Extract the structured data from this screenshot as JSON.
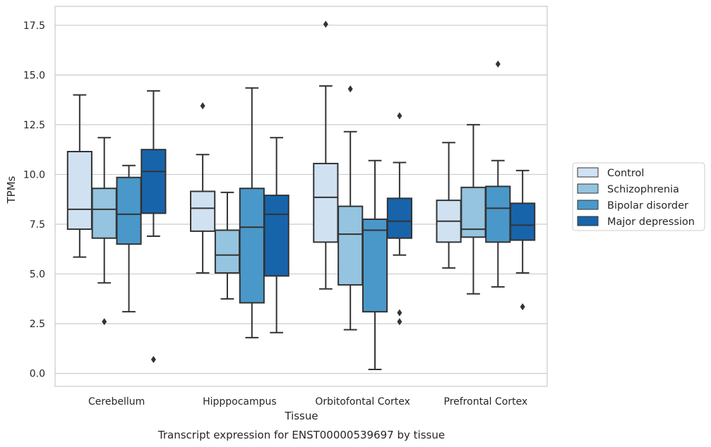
{
  "chart_data": {
    "type": "box",
    "title": "",
    "caption": "Transcript expression for ENST00000539697 by tissue",
    "xlabel": "Tissue",
    "ylabel": "TPMs",
    "ylim": [
      -0.65,
      18.45
    ],
    "yticks": [
      "0.0",
      "2.5",
      "5.0",
      "7.5",
      "10.0",
      "12.5",
      "15.0",
      "17.5"
    ],
    "grid": "horizontal",
    "legend_position": "right",
    "categories": [
      "Cerebellum",
      "Hipppocampus",
      "Orbitofontal Cortex",
      "Prefrontal Cortex"
    ],
    "series": [
      {
        "name": "Control",
        "color": "#d0e1f2",
        "boxes": [
          {
            "whisker_low": 5.85,
            "q1": 7.25,
            "median": 8.25,
            "q3": 11.15,
            "whisker_high": 14.0,
            "outliers": []
          },
          {
            "whisker_low": 5.05,
            "q1": 7.15,
            "median": 8.3,
            "q3": 9.15,
            "whisker_high": 11.0,
            "outliers": [
              13.45
            ]
          },
          {
            "whisker_low": 4.25,
            "q1": 6.6,
            "median": 8.85,
            "q3": 10.55,
            "whisker_high": 14.45,
            "outliers": [
              17.55
            ]
          },
          {
            "whisker_low": 5.3,
            "q1": 6.6,
            "median": 7.65,
            "q3": 8.7,
            "whisker_high": 11.6,
            "outliers": []
          }
        ]
      },
      {
        "name": "Schizophrenia",
        "color": "#94c4df",
        "boxes": [
          {
            "whisker_low": 4.55,
            "q1": 6.8,
            "median": 8.25,
            "q3": 9.3,
            "whisker_high": 11.85,
            "outliers": [
              2.6
            ]
          },
          {
            "whisker_low": 3.75,
            "q1": 5.05,
            "median": 5.95,
            "q3": 7.2,
            "whisker_high": 9.1,
            "outliers": []
          },
          {
            "whisker_low": 2.2,
            "q1": 4.45,
            "median": 7.0,
            "q3": 8.4,
            "whisker_high": 12.15,
            "outliers": [
              14.3
            ]
          },
          {
            "whisker_low": 4.0,
            "q1": 6.85,
            "median": 7.25,
            "q3": 9.35,
            "whisker_high": 12.5,
            "outliers": []
          }
        ]
      },
      {
        "name": "Bipolar disorder",
        "color": "#4a98c9",
        "boxes": [
          {
            "whisker_low": 3.1,
            "q1": 6.5,
            "median": 8.0,
            "q3": 9.85,
            "whisker_high": 10.45,
            "outliers": []
          },
          {
            "whisker_low": 1.8,
            "q1": 3.55,
            "median": 7.35,
            "q3": 9.3,
            "whisker_high": 14.35,
            "outliers": []
          },
          {
            "whisker_low": 0.2,
            "q1": 3.1,
            "median": 7.2,
            "q3": 7.75,
            "whisker_high": 10.7,
            "outliers": []
          },
          {
            "whisker_low": 4.35,
            "q1": 6.6,
            "median": 8.3,
            "q3": 9.4,
            "whisker_high": 10.7,
            "outliers": [
              15.55
            ]
          }
        ]
      },
      {
        "name": "Major depression",
        "color": "#1764ab",
        "boxes": [
          {
            "whisker_low": 6.9,
            "q1": 8.05,
            "median": 10.15,
            "q3": 11.25,
            "whisker_high": 14.2,
            "outliers": [
              0.7
            ]
          },
          {
            "whisker_low": 2.05,
            "q1": 4.9,
            "median": 8.0,
            "q3": 8.95,
            "whisker_high": 11.85,
            "outliers": []
          },
          {
            "whisker_low": 5.95,
            "q1": 6.8,
            "median": 7.65,
            "q3": 8.8,
            "whisker_high": 10.6,
            "outliers": [
              12.95,
              3.05,
              2.6
            ]
          },
          {
            "whisker_low": 5.05,
            "q1": 6.7,
            "median": 7.45,
            "q3": 8.55,
            "whisker_high": 10.2,
            "outliers": [
              3.35
            ]
          }
        ]
      }
    ]
  }
}
